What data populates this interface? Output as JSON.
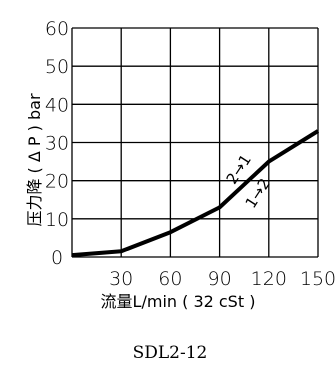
{
  "chart_data": {
    "type": "line",
    "xlabel": "流量L/min ( 32 cSt )",
    "ylabel": "压力降 ( Δ P ) bar",
    "xlim": [
      0,
      150
    ],
    "ylim": [
      0,
      60
    ],
    "x_ticks": [
      "30",
      "60",
      "90",
      "120",
      "150"
    ],
    "y_ticks": [
      "0",
      "10",
      "20",
      "30",
      "40",
      "50",
      "60"
    ],
    "grid": true,
    "series": [
      {
        "x": [
          0,
          30,
          60,
          90,
          120,
          150
        ],
        "y": [
          0.5,
          1.5,
          6.5,
          13,
          25,
          33
        ]
      }
    ],
    "annotations": [
      "2→1",
      "1→2"
    ],
    "caption": "SDL2-12"
  }
}
